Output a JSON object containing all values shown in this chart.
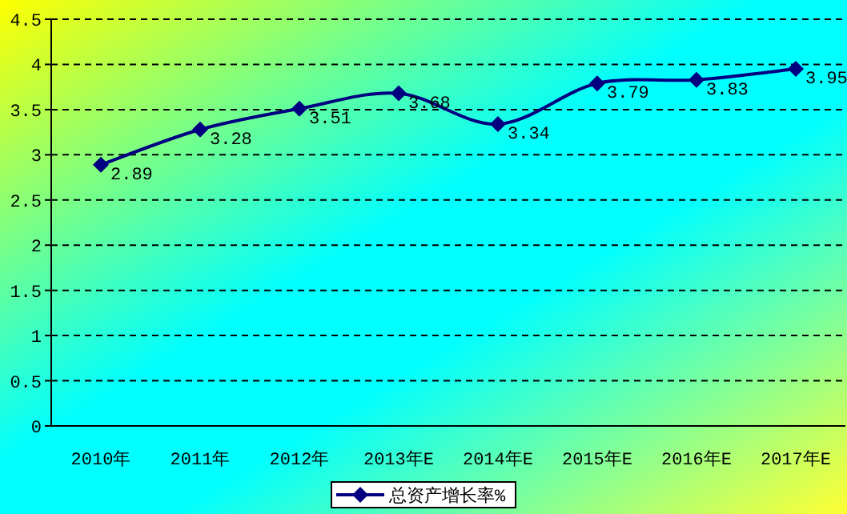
{
  "chart_data": {
    "type": "line",
    "categories": [
      "2010年",
      "2011年",
      "2012年",
      "2013年E",
      "2014年E",
      "2015年E",
      "2016年E",
      "2017年E"
    ],
    "series": [
      {
        "name": "总资产增长率%",
        "color": "#000080",
        "values": [
          2.89,
          3.28,
          3.51,
          3.68,
          3.34,
          3.79,
          3.83,
          3.95
        ]
      }
    ],
    "ylim": [
      0,
      4.5
    ],
    "yticks": [
      0,
      0.5,
      1,
      1.5,
      2,
      2.5,
      3,
      3.5,
      4,
      4.5
    ],
    "grid": "y",
    "legend": "bottom",
    "marker": "diamond",
    "line_style": "solid",
    "data_labels": true
  }
}
